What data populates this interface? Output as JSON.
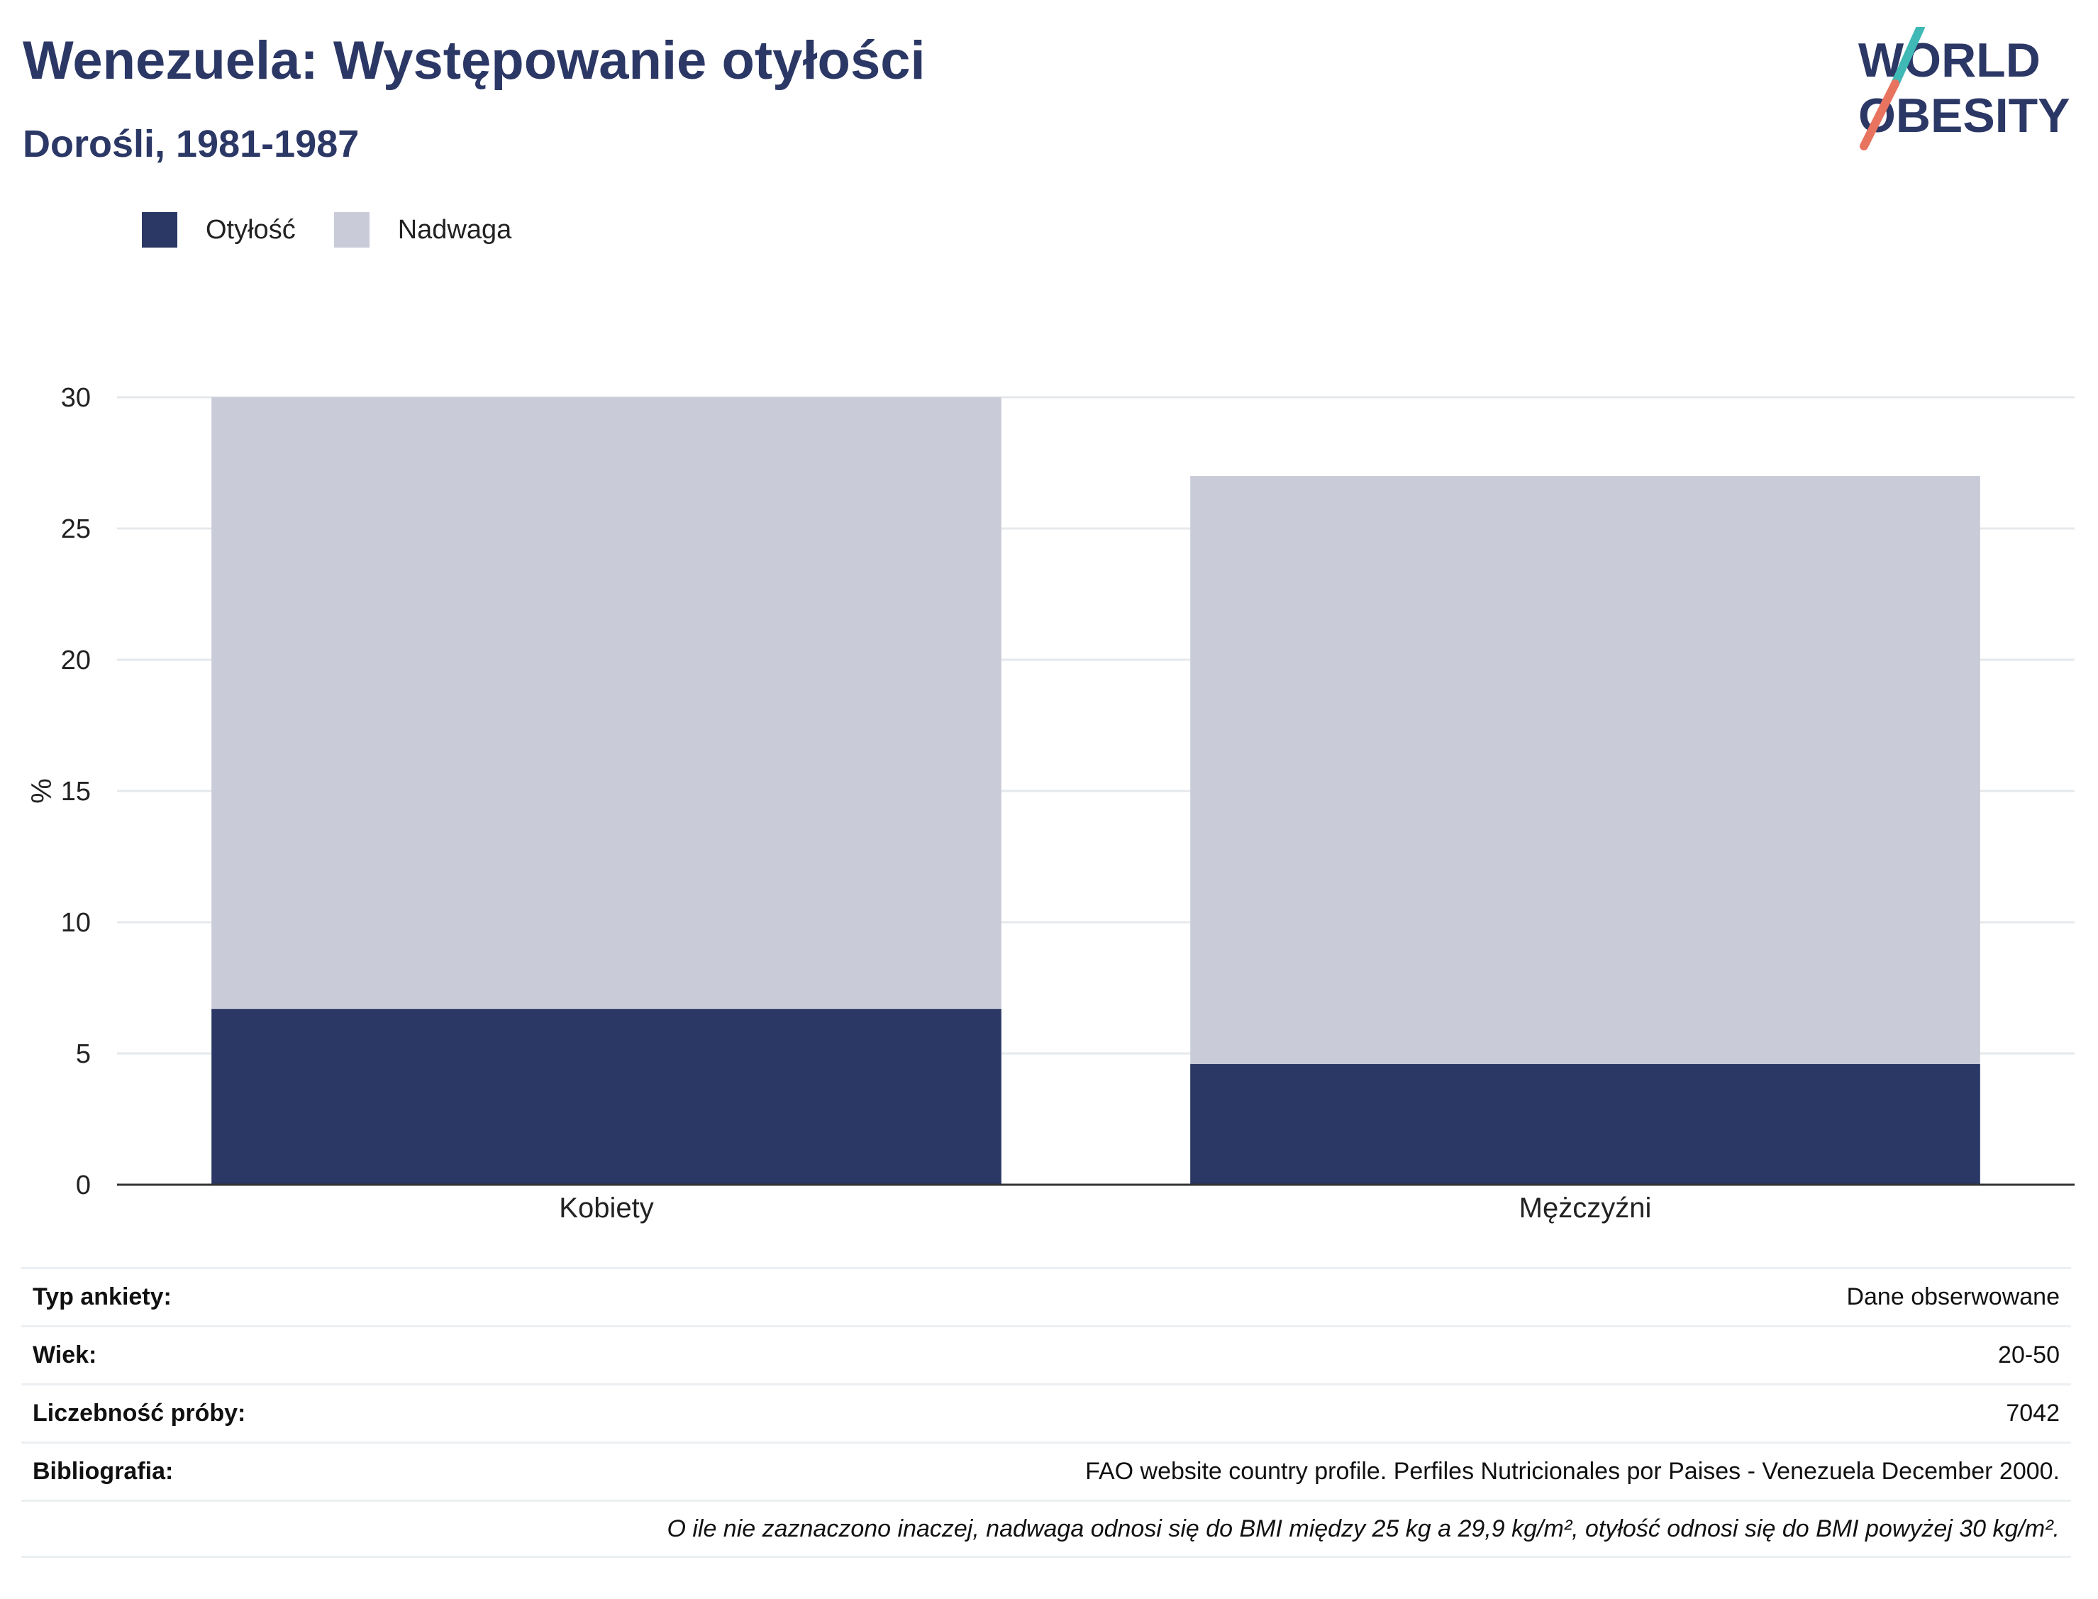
{
  "header": {
    "title": "Wenezuela: Występowanie otyłości",
    "subtitle": "Dorośli, 1981-1987"
  },
  "logo": {
    "line1": "WORLD",
    "line2": "OBESITY"
  },
  "legend": [
    {
      "label": "Otyłość",
      "color": "#2b3765"
    },
    {
      "label": "Nadwaga",
      "color": "#c9ccd8"
    }
  ],
  "chart_data": {
    "type": "bar",
    "stacked": true,
    "categories": [
      "Kobiety",
      "Mężczyźni"
    ],
    "series": [
      {
        "name": "Otyłość",
        "values": [
          6.7,
          4.6
        ],
        "color": "#2b3765"
      },
      {
        "name": "Nadwaga",
        "values": [
          23.3,
          22.4
        ],
        "color": "#c9ccd8"
      }
    ],
    "ylabel": "%",
    "ylim": [
      0,
      30
    ],
    "yticks": [
      0,
      5,
      10,
      15,
      20,
      25,
      30
    ],
    "grid": true,
    "legend_position": "top-left"
  },
  "info": {
    "rows": [
      {
        "key": "Typ ankiety:",
        "value": "Dane obserwowane"
      },
      {
        "key": "Wiek:",
        "value": "20-50"
      },
      {
        "key": "Liczebność próby:",
        "value": "7042"
      },
      {
        "key": "Bibliografia:",
        "value": "FAO website country profile. Perfiles Nutricionales por Paises - Venezuela December 2000."
      }
    ],
    "note": "O ile nie zaznaczono inaczej, nadwaga odnosi się do BMI między 25 kg a 29,9 kg/m², otyłość odnosi się do BMI powyżej 30 kg/m²."
  }
}
